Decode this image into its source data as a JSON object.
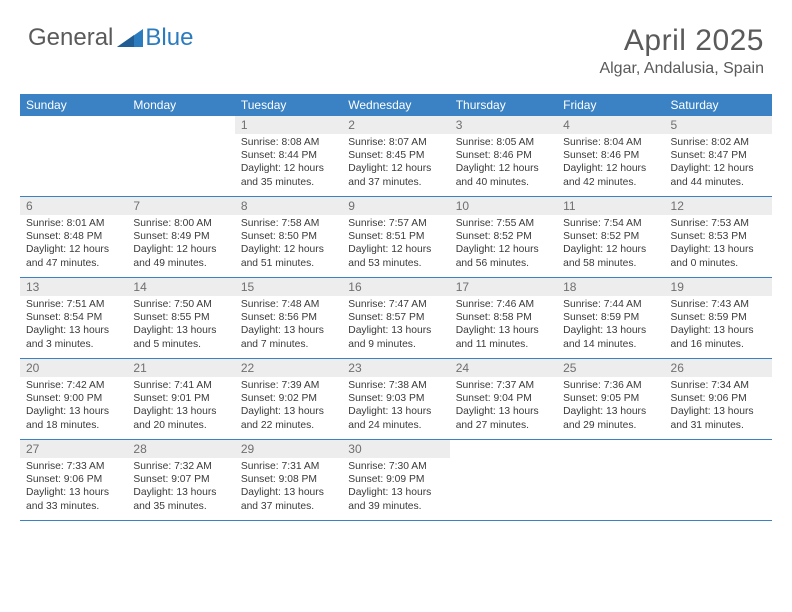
{
  "logo": {
    "general": "General",
    "blue": "Blue"
  },
  "title": {
    "month": "April 2025",
    "location": "Algar, Andalusia, Spain"
  },
  "colors": {
    "header_bg": "#3a82c4",
    "header_text": "#ffffff",
    "daynum_bg": "#ededed",
    "daynum_text": "#6f6f6f",
    "info_text": "#3a3a3a",
    "row_border": "#3a82c4",
    "logo_gray": "#5a5a5a",
    "logo_blue": "#2b7bbf"
  },
  "weekdays": [
    "Sunday",
    "Monday",
    "Tuesday",
    "Wednesday",
    "Thursday",
    "Friday",
    "Saturday"
  ],
  "grid": [
    [
      null,
      null,
      {
        "n": "1",
        "sr": "8:08 AM",
        "ss": "8:44 PM",
        "dl": "12 hours and 35 minutes."
      },
      {
        "n": "2",
        "sr": "8:07 AM",
        "ss": "8:45 PM",
        "dl": "12 hours and 37 minutes."
      },
      {
        "n": "3",
        "sr": "8:05 AM",
        "ss": "8:46 PM",
        "dl": "12 hours and 40 minutes."
      },
      {
        "n": "4",
        "sr": "8:04 AM",
        "ss": "8:46 PM",
        "dl": "12 hours and 42 minutes."
      },
      {
        "n": "5",
        "sr": "8:02 AM",
        "ss": "8:47 PM",
        "dl": "12 hours and 44 minutes."
      }
    ],
    [
      {
        "n": "6",
        "sr": "8:01 AM",
        "ss": "8:48 PM",
        "dl": "12 hours and 47 minutes."
      },
      {
        "n": "7",
        "sr": "8:00 AM",
        "ss": "8:49 PM",
        "dl": "12 hours and 49 minutes."
      },
      {
        "n": "8",
        "sr": "7:58 AM",
        "ss": "8:50 PM",
        "dl": "12 hours and 51 minutes."
      },
      {
        "n": "9",
        "sr": "7:57 AM",
        "ss": "8:51 PM",
        "dl": "12 hours and 53 minutes."
      },
      {
        "n": "10",
        "sr": "7:55 AM",
        "ss": "8:52 PM",
        "dl": "12 hours and 56 minutes."
      },
      {
        "n": "11",
        "sr": "7:54 AM",
        "ss": "8:52 PM",
        "dl": "12 hours and 58 minutes."
      },
      {
        "n": "12",
        "sr": "7:53 AM",
        "ss": "8:53 PM",
        "dl": "13 hours and 0 minutes."
      }
    ],
    [
      {
        "n": "13",
        "sr": "7:51 AM",
        "ss": "8:54 PM",
        "dl": "13 hours and 3 minutes."
      },
      {
        "n": "14",
        "sr": "7:50 AM",
        "ss": "8:55 PM",
        "dl": "13 hours and 5 minutes."
      },
      {
        "n": "15",
        "sr": "7:48 AM",
        "ss": "8:56 PM",
        "dl": "13 hours and 7 minutes."
      },
      {
        "n": "16",
        "sr": "7:47 AM",
        "ss": "8:57 PM",
        "dl": "13 hours and 9 minutes."
      },
      {
        "n": "17",
        "sr": "7:46 AM",
        "ss": "8:58 PM",
        "dl": "13 hours and 11 minutes."
      },
      {
        "n": "18",
        "sr": "7:44 AM",
        "ss": "8:59 PM",
        "dl": "13 hours and 14 minutes."
      },
      {
        "n": "19",
        "sr": "7:43 AM",
        "ss": "8:59 PM",
        "dl": "13 hours and 16 minutes."
      }
    ],
    [
      {
        "n": "20",
        "sr": "7:42 AM",
        "ss": "9:00 PM",
        "dl": "13 hours and 18 minutes."
      },
      {
        "n": "21",
        "sr": "7:41 AM",
        "ss": "9:01 PM",
        "dl": "13 hours and 20 minutes."
      },
      {
        "n": "22",
        "sr": "7:39 AM",
        "ss": "9:02 PM",
        "dl": "13 hours and 22 minutes."
      },
      {
        "n": "23",
        "sr": "7:38 AM",
        "ss": "9:03 PM",
        "dl": "13 hours and 24 minutes."
      },
      {
        "n": "24",
        "sr": "7:37 AM",
        "ss": "9:04 PM",
        "dl": "13 hours and 27 minutes."
      },
      {
        "n": "25",
        "sr": "7:36 AM",
        "ss": "9:05 PM",
        "dl": "13 hours and 29 minutes."
      },
      {
        "n": "26",
        "sr": "7:34 AM",
        "ss": "9:06 PM",
        "dl": "13 hours and 31 minutes."
      }
    ],
    [
      {
        "n": "27",
        "sr": "7:33 AM",
        "ss": "9:06 PM",
        "dl": "13 hours and 33 minutes."
      },
      {
        "n": "28",
        "sr": "7:32 AM",
        "ss": "9:07 PM",
        "dl": "13 hours and 35 minutes."
      },
      {
        "n": "29",
        "sr": "7:31 AM",
        "ss": "9:08 PM",
        "dl": "13 hours and 37 minutes."
      },
      {
        "n": "30",
        "sr": "7:30 AM",
        "ss": "9:09 PM",
        "dl": "13 hours and 39 minutes."
      },
      null,
      null,
      null
    ]
  ],
  "labels": {
    "sunrise": "Sunrise:",
    "sunset": "Sunset:",
    "daylight": "Daylight:"
  }
}
